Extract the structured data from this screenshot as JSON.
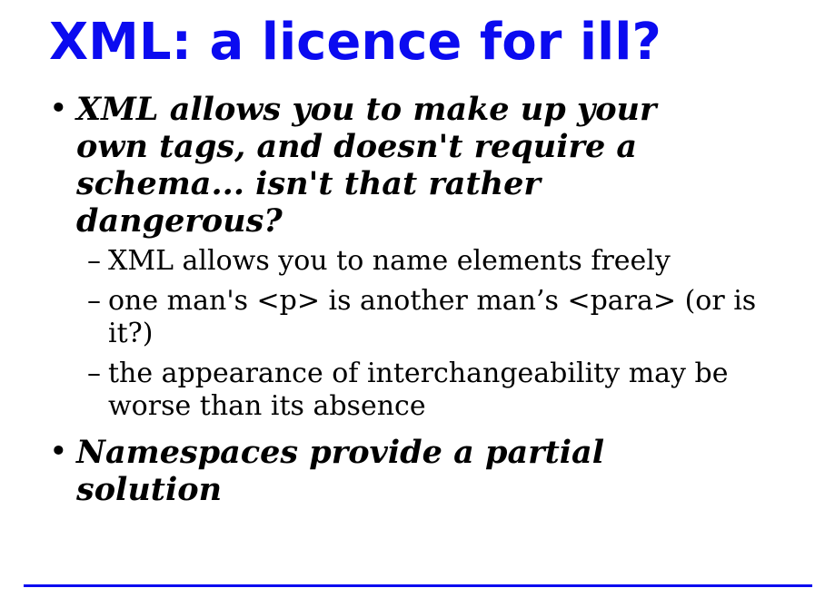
{
  "slide": {
    "title": "XML: a licence for ill?",
    "bullets": [
      {
        "marker": "•",
        "text": "XML allows you to make up your own tags, and doesn't require a schema... isn't that rather dangerous?",
        "sub_items": [
          {
            "marker": "–",
            "text": "XML allows you to name elements freely"
          },
          {
            "marker": "–",
            "text": "one man's <p> is another man’s <para> (or is it?)"
          },
          {
            "marker": "–",
            "text": "the appearance of interchangeability may be worse than its absence"
          }
        ]
      },
      {
        "marker": "•",
        "text": "Namespaces provide a partial solution"
      }
    ],
    "accent_color": "#0b0bf0",
    "text_color": "#000000"
  }
}
